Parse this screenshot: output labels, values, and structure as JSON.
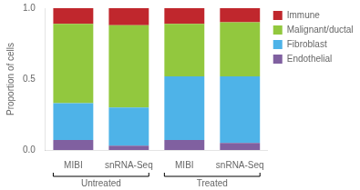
{
  "chart_data": {
    "type": "bar",
    "stacked": true,
    "categories": [
      "MIBI",
      "snRNA-Seq",
      "MIBI",
      "snRNA-Seq"
    ],
    "groups": [
      {
        "label": "Untreated",
        "categories": [
          "MIBI",
          "snRNA-Seq"
        ]
      },
      {
        "label": "Treated",
        "categories": [
          "MIBI",
          "snRNA-Seq"
        ]
      }
    ],
    "series": [
      {
        "name": "Endothelial",
        "color": "#8060A0",
        "values": [
          0.07,
          0.03,
          0.07,
          0.05
        ]
      },
      {
        "name": "Fibroblast",
        "color": "#4EB3E8",
        "values": [
          0.26,
          0.27,
          0.45,
          0.47
        ]
      },
      {
        "name": "Malignant/ductal",
        "color": "#92C83E",
        "values": [
          0.56,
          0.58,
          0.37,
          0.38
        ]
      },
      {
        "name": "Immune",
        "color": "#C0272D",
        "values": [
          0.11,
          0.12,
          0.11,
          0.1
        ]
      }
    ],
    "ylabel": "Proportion of cells",
    "ylim": [
      0,
      1.0
    ],
    "yticks": [
      {
        "value": 0.0,
        "label": "0.0"
      },
      {
        "value": 0.5,
        "label": "0.5"
      },
      {
        "value": 1.0,
        "label": "1.0"
      }
    ],
    "grid": false,
    "legend": "right"
  }
}
